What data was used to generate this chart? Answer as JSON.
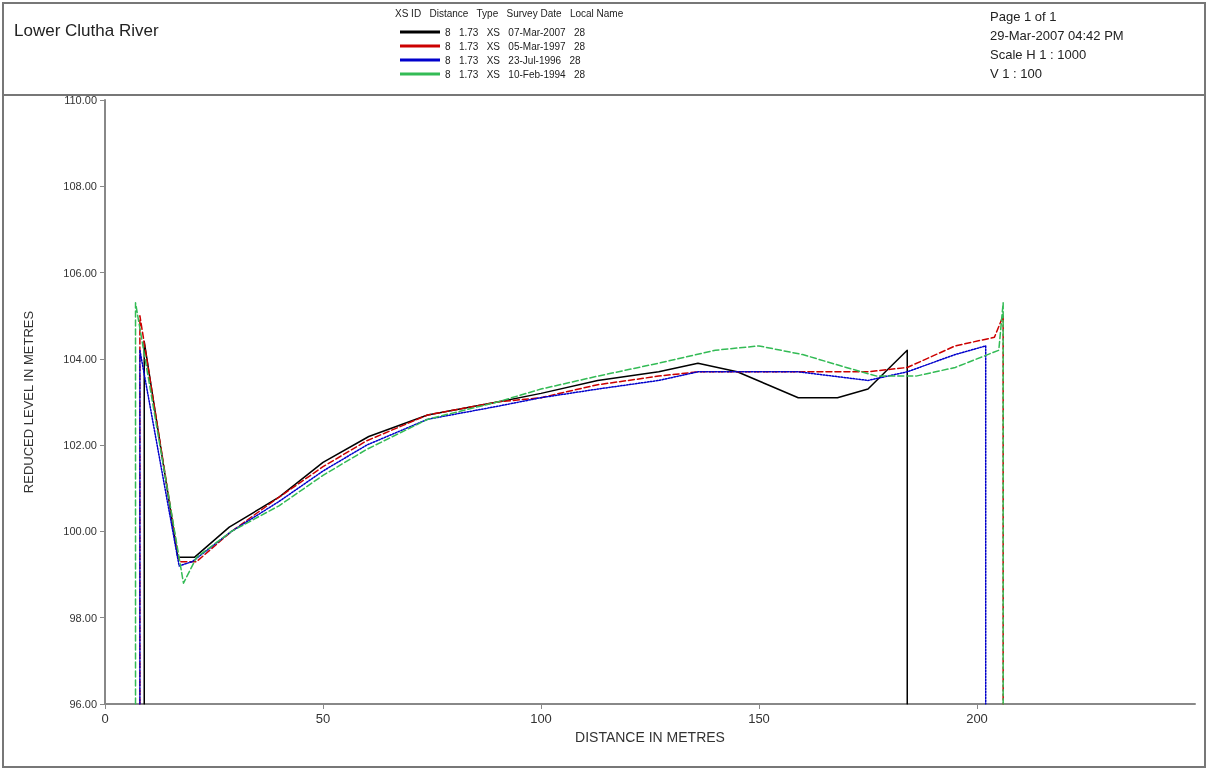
{
  "chart_data": {
    "type": "line",
    "title": "Lower Clutha River",
    "xlabel": "DISTANCE IN METRES",
    "ylabel": "REDUCED LEVEL IN METRES",
    "legend_title": "XS ID   Distance   Type   Survey Date   Local Name",
    "legend": "top",
    "grid": false,
    "marker": "none",
    "annotations": [
      "Page 1 of 1",
      "29-Mar-2007 04:42 PM",
      "Scale H 1 : 1000",
      "V 1 : 100"
    ],
    "xlim": [
      0,
      250
    ],
    "xticks": [
      0,
      50,
      100,
      150,
      200
    ],
    "ylim": [
      96,
      110
    ],
    "yticks": [
      {
        "value": 96,
        "label": "96.00"
      },
      {
        "value": 98,
        "label": "98.00"
      },
      {
        "value": 100,
        "label": "100.00"
      },
      {
        "value": 102,
        "label": "102.00"
      },
      {
        "value": 104,
        "label": "104.00"
      },
      {
        "value": 106,
        "label": "106.00"
      },
      {
        "value": 108,
        "label": "108.00"
      },
      {
        "value": 110,
        "label": "110.00"
      }
    ],
    "series": [
      {
        "name": "8   1.73   XS   07-Mar-2007   28",
        "color": "#000000",
        "line_style": "solid",
        "x": [
          9,
          9,
          16.7,
          20.5,
          28.5,
          40,
          50,
          60.5,
          74,
          90,
          100,
          113,
          127,
          136,
          145,
          152,
          159,
          168,
          175,
          179,
          184,
          184
        ],
        "values": [
          96,
          104.4,
          99.4,
          99.4,
          100.1,
          100.8,
          101.6,
          102.2,
          102.7,
          103.0,
          103.2,
          103.5,
          103.7,
          103.9,
          103.7,
          103.4,
          103.1,
          103.1,
          103.3,
          103.7,
          104.2,
          96
        ]
      },
      {
        "name": "8   1.73   XS   05-Mar-1997   28",
        "color": "#cc0000",
        "line_style": "dashed",
        "x": [
          8,
          8,
          17,
          21,
          29,
          40,
          50,
          60,
          74,
          90,
          100,
          113,
          127,
          136,
          145,
          159,
          175,
          184,
          195,
          204,
          206,
          206
        ],
        "values": [
          96,
          105.0,
          99.3,
          99.3,
          100.0,
          100.8,
          101.5,
          102.1,
          102.7,
          103.0,
          103.1,
          103.4,
          103.6,
          103.7,
          103.7,
          103.7,
          103.7,
          103.8,
          104.3,
          104.5,
          105.0,
          96
        ]
      },
      {
        "name": "8   1.73   XS   23-Jul-1996   28",
        "color": "#0000cc",
        "line_style": "dotted",
        "x": [
          8,
          8,
          17,
          20,
          29,
          40,
          50,
          60,
          74,
          90,
          100,
          113,
          127,
          136,
          145,
          159,
          175,
          184,
          195,
          202,
          202
        ],
        "values": [
          96,
          104.2,
          99.2,
          99.3,
          100.0,
          100.7,
          101.4,
          102.0,
          102.6,
          102.9,
          103.1,
          103.3,
          103.5,
          103.7,
          103.7,
          103.7,
          103.5,
          103.7,
          104.1,
          104.3,
          96
        ]
      },
      {
        "name": "8   1.73   XS   10-Feb-1994   28",
        "color": "#33bb55",
        "line_style": "dashed",
        "x": [
          7,
          7,
          18,
          21,
          29,
          40,
          50,
          60,
          74,
          90,
          100,
          113,
          127,
          140,
          150,
          160,
          170,
          177,
          186,
          195,
          205,
          206,
          206
        ],
        "values": [
          96,
          105.3,
          98.8,
          99.4,
          100.0,
          100.6,
          101.3,
          101.9,
          102.6,
          103.0,
          103.3,
          103.6,
          103.9,
          104.2,
          104.3,
          104.1,
          103.8,
          103.6,
          103.6,
          103.8,
          104.2,
          105.3,
          96
        ]
      }
    ]
  }
}
